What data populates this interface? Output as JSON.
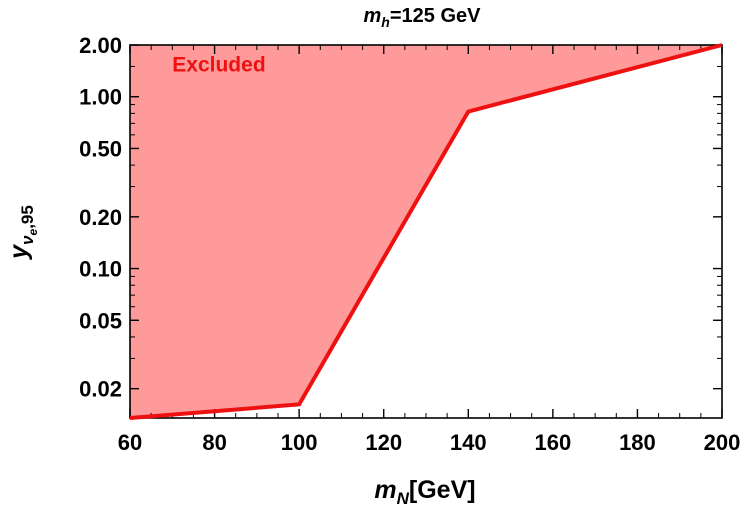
{
  "chart_data": {
    "type": "area",
    "title": {
      "main": "m",
      "sub": "h",
      "rest": "=125 GeV"
    },
    "xlabel": {
      "main": "m",
      "sub": "N",
      "rest": "[GeV]"
    },
    "ylabel": {
      "main": "y",
      "sub": "ν",
      "subsub": "e",
      "rest": ",95"
    },
    "xlim": [
      60,
      200
    ],
    "ylim": [
      0.0135,
      2.0
    ],
    "yscale": "log",
    "x_ticks": [
      "60",
      "80",
      "100",
      "120",
      "140",
      "160",
      "180",
      "200"
    ],
    "y_ticks": [
      "0.02",
      "0.05",
      "0.10",
      "0.20",
      "0.50",
      "1.00",
      "2.00"
    ],
    "series": [
      {
        "x": [
          60,
          100,
          140,
          200
        ],
        "y": [
          0.0135,
          0.0162,
          0.82,
          2.0
        ],
        "color": "#ee1111",
        "fill_above": "#ff9a9a"
      }
    ],
    "annotations": [
      {
        "text": "Excluded",
        "color": "#ee1111",
        "x": 70,
        "y": 1.4
      }
    ],
    "grid": false
  }
}
